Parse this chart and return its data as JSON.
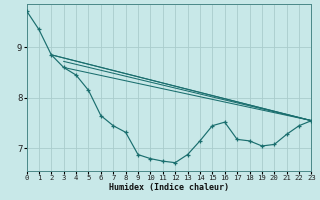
{
  "xlabel": "Humidex (Indice chaleur)",
  "bg_color": "#c8e8e8",
  "line_color": "#1a6e6e",
  "grid_color": "#aacccc",
  "xlim": [
    0,
    23
  ],
  "ylim": [
    6.55,
    9.85
  ],
  "yticks": [
    7,
    8,
    9
  ],
  "xticks": [
    0,
    1,
    2,
    3,
    4,
    5,
    6,
    7,
    8,
    9,
    10,
    11,
    12,
    13,
    14,
    15,
    16,
    17,
    18,
    19,
    20,
    21,
    22,
    23
  ],
  "curve_x": [
    0,
    1,
    2,
    3,
    4,
    5,
    6,
    7,
    8,
    9,
    10,
    11,
    12,
    13,
    14,
    15,
    16,
    17,
    18,
    19,
    20,
    21,
    22,
    23
  ],
  "curve_y": [
    9.72,
    9.35,
    8.85,
    8.6,
    8.45,
    8.15,
    7.65,
    7.45,
    7.32,
    6.88,
    6.8,
    6.75,
    6.72,
    6.88,
    7.15,
    7.45,
    7.52,
    7.18,
    7.15,
    7.05,
    7.08,
    7.28,
    7.45,
    7.55
  ],
  "fan_lines": [
    {
      "x": [
        2,
        23
      ],
      "y": [
        8.85,
        7.55
      ]
    },
    {
      "x": [
        2,
        23
      ],
      "y": [
        8.85,
        7.55
      ]
    },
    {
      "x": [
        3,
        23
      ],
      "y": [
        8.72,
        7.55
      ]
    },
    {
      "x": [
        3,
        23
      ],
      "y": [
        8.6,
        7.55
      ]
    }
  ],
  "xlabel_fontsize": 6.0,
  "tick_fontsize_x": 5.2,
  "tick_fontsize_y": 6.5
}
